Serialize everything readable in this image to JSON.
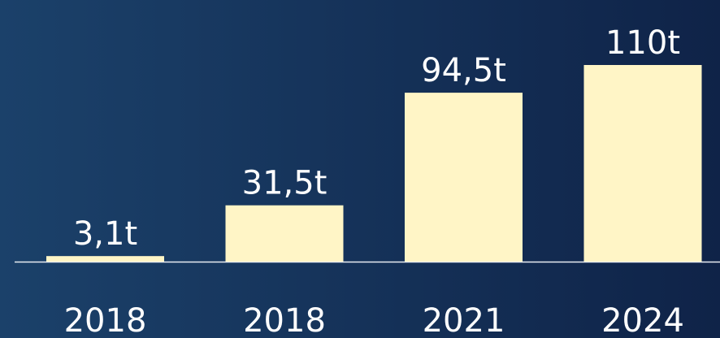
{
  "chart_data": {
    "type": "bar",
    "categories": [
      "2018",
      "2018",
      "2021",
      "2024"
    ],
    "values": [
      3.1,
      31.5,
      94.5,
      110
    ],
    "value_labels": [
      "3,1t",
      "31,5t",
      "94,5t",
      "110t"
    ],
    "color": "#fff5c6"
  }
}
